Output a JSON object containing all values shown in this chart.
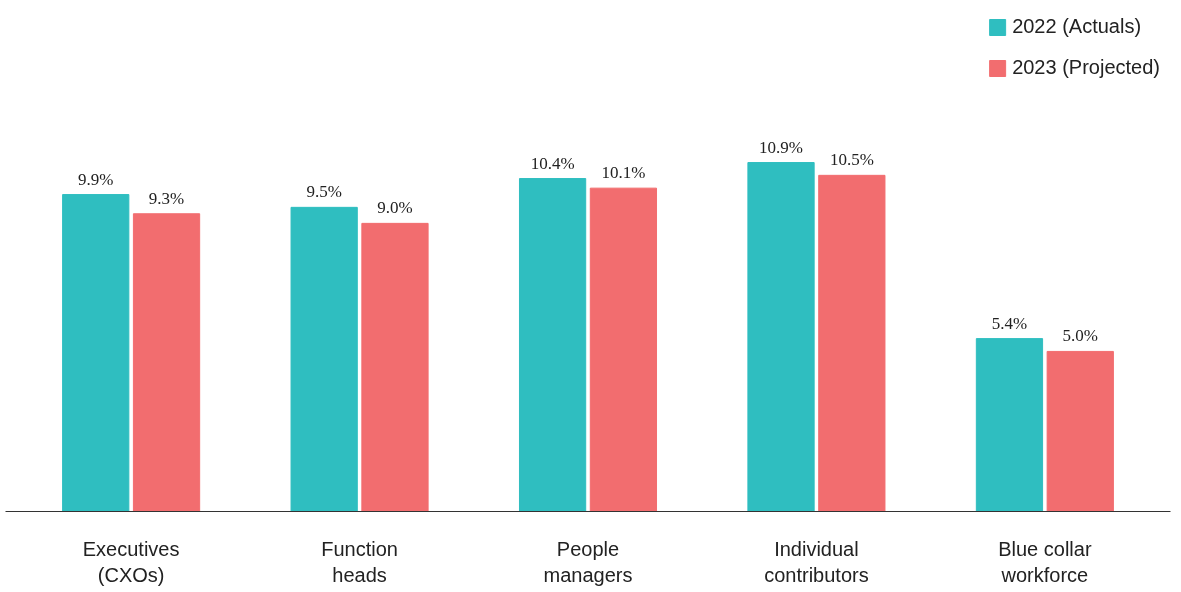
{
  "chart_data": {
    "type": "bar",
    "categories": [
      "Executives\n(CXOs)",
      "Function\nheads",
      "People\nmanagers",
      "Individual\ncontributors",
      "Blue collar\nworkforce"
    ],
    "series": [
      {
        "name": "2022 (Actuals)",
        "color": "#2fbec0",
        "values": [
          9.9,
          9.5,
          10.4,
          10.9,
          5.4
        ],
        "value_labels": [
          "9.9%",
          "9.5%",
          "10.4%",
          "10.9%",
          "5.4%"
        ]
      },
      {
        "name": "2023 (Projected)",
        "color": "#f26d6f",
        "values": [
          9.3,
          9.0,
          10.1,
          10.5,
          5.0
        ],
        "value_labels": [
          "9.3%",
          "9.0%",
          "10.1%",
          "10.5%",
          "5.0%"
        ]
      }
    ],
    "legend": "top right"
  }
}
